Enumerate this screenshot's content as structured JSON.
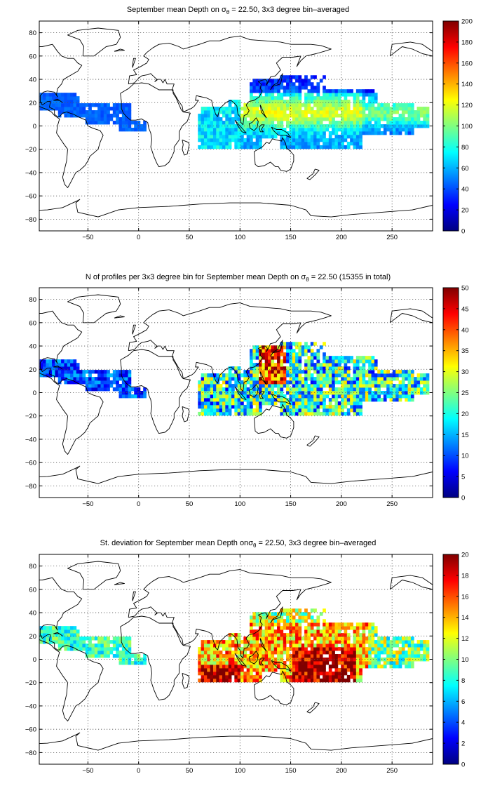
{
  "panels": [
    {
      "id": "mean",
      "title_pre": "September mean Depth on ",
      "title_post": " = 22.50, 3x3 degree bin–averaged",
      "colorbar": {
        "min": 0,
        "max": 200,
        "ticks": [
          "0",
          "20",
          "40",
          "60",
          "80",
          "100",
          "120",
          "140",
          "160",
          "180",
          "200"
        ]
      }
    },
    {
      "id": "count",
      "title_pre": "N of profiles per 3x3 degree bin for September mean Depth on ",
      "title_post": " = 22.50 (15355 in total)",
      "colorbar": {
        "min": 0,
        "max": 50,
        "ticks": [
          "0",
          "5",
          "10",
          "15",
          "20",
          "25",
          "30",
          "35",
          "40",
          "45",
          "50"
        ]
      }
    },
    {
      "id": "std",
      "title_pre": "St. deviation for September mean Depth on",
      "title_post": " = 22.50, 3x3 degree bin–averaged",
      "colorbar": {
        "min": 0,
        "max": 20,
        "ticks": [
          "0",
          "2",
          "4",
          "6",
          "8",
          "10",
          "12",
          "14",
          "16",
          "18",
          "20"
        ]
      }
    }
  ],
  "sigma_symbol": "σ",
  "sigma_subscript": "θ",
  "x_ticks": [
    "−50",
    "0",
    "50",
    "100",
    "150",
    "200",
    "250"
  ],
  "y_ticks": [
    "80",
    "60",
    "40",
    "20",
    "0",
    "−20",
    "−40",
    "−60",
    "−80"
  ],
  "colormap": "jet"
}
